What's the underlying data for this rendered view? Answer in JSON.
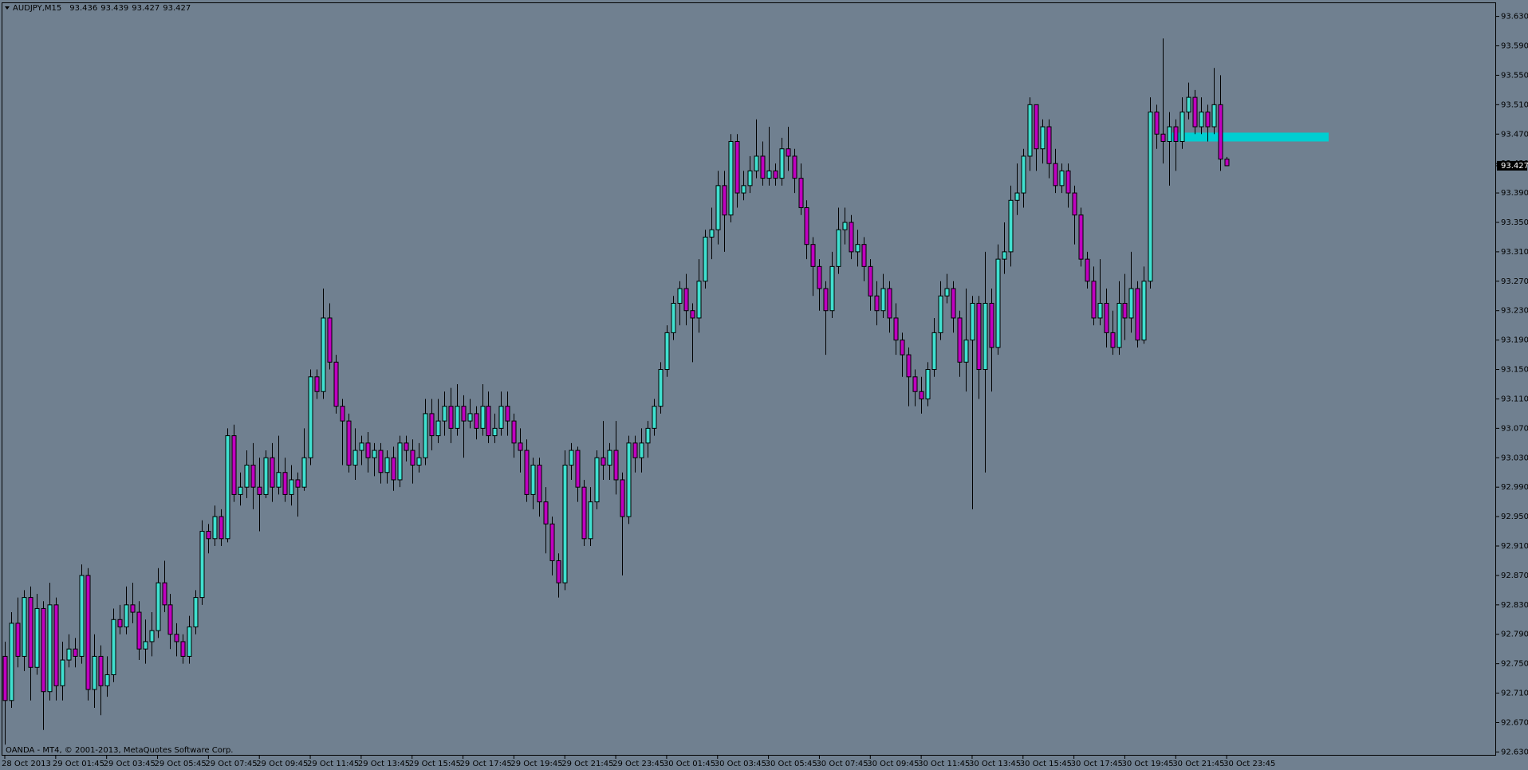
{
  "chart_data": {
    "type": "candlestick",
    "title": "AUDJPY,M15",
    "header_values": [
      93.436,
      93.439,
      93.427,
      93.427
    ],
    "footer": "OANDA - MT4, © 2001-2013, MetaQuotes Software Corp.",
    "categories": [
      "28 Oct 2013",
      null,
      null,
      null,
      null,
      null,
      null,
      null,
      "29 Oct 01:45",
      null,
      null,
      null,
      null,
      null,
      null,
      null,
      "29 Oct 03:45",
      null,
      null,
      null,
      null,
      null,
      null,
      null,
      "29 Oct 05:45",
      null,
      null,
      null,
      null,
      null,
      null,
      null,
      "29 Oct 07:45",
      null,
      null,
      null,
      null,
      null,
      null,
      null,
      "29 Oct 09:45",
      null,
      null,
      null,
      null,
      null,
      null,
      null,
      "29 Oct 11:45",
      null,
      null,
      null,
      null,
      null,
      null,
      null,
      "29 Oct 13:45",
      null,
      null,
      null,
      null,
      null,
      null,
      null,
      "29 Oct 15:45",
      null,
      null,
      null,
      null,
      null,
      null,
      null,
      "29 Oct 17:45",
      null,
      null,
      null,
      null,
      null,
      null,
      null,
      "29 Oct 19:45",
      null,
      null,
      null,
      null,
      null,
      null,
      null,
      "29 Oct 21:45",
      null,
      null,
      null,
      null,
      null,
      null,
      null,
      "29 Oct 23:45",
      null,
      null,
      null,
      null,
      null,
      null,
      null,
      "30 Oct 01:45",
      null,
      null,
      null,
      null,
      null,
      null,
      null,
      "30 Oct 03:45",
      null,
      null,
      null,
      null,
      null,
      null,
      null,
      "30 Oct 05:45",
      null,
      null,
      null,
      null,
      null,
      null,
      null,
      "30 Oct 07:45",
      null,
      null,
      null,
      null,
      null,
      null,
      null,
      "30 Oct 09:45",
      null,
      null,
      null,
      null,
      null,
      null,
      null,
      "30 Oct 11:45",
      null,
      null,
      null,
      null,
      null,
      null,
      null,
      "30 Oct 13:45",
      null,
      null,
      null,
      null,
      null,
      null,
      null,
      "30 Oct 15:45",
      null,
      null,
      null,
      null,
      null,
      null,
      null,
      "30 Oct 17:45",
      null,
      null,
      null,
      null,
      null,
      null,
      null,
      "30 Oct 19:45",
      null,
      null,
      null,
      null,
      null,
      null,
      null,
      "30 Oct 21:45",
      null,
      null,
      null,
      null,
      null,
      null,
      null,
      "30 Oct 23:45"
    ],
    "open": [
      92.76,
      92.7,
      92.805,
      92.76,
      92.84,
      92.745,
      92.825,
      92.712,
      92.83,
      92.72,
      92.755,
      92.77,
      92.76,
      92.87,
      92.715,
      92.76,
      92.72,
      92.735,
      92.81,
      92.8,
      92.83,
      92.82,
      92.77,
      92.78,
      92.795,
      92.86,
      92.83,
      92.79,
      92.78,
      92.76,
      92.8,
      92.84,
      92.93,
      92.92,
      92.95,
      92.92,
      93.06,
      92.98,
      92.99,
      93.02,
      92.99,
      92.98,
      93.03,
      92.99,
      93.01,
      92.98,
      93.0,
      92.99,
      93.03,
      93.14,
      93.12,
      93.22,
      93.16,
      93.1,
      93.08,
      93.02,
      93.04,
      93.05,
      93.03,
      93.04,
      93.01,
      93.03,
      93.0,
      93.05,
      93.04,
      93.02,
      93.03,
      93.09,
      93.06,
      93.08,
      93.1,
      93.07,
      93.1,
      93.08,
      93.09,
      93.07,
      93.1,
      93.06,
      93.07,
      93.1,
      93.08,
      93.05,
      93.04,
      92.98,
      93.02,
      92.97,
      92.94,
      92.89,
      92.86,
      93.02,
      93.04,
      92.99,
      92.92,
      92.97,
      93.03,
      93.02,
      93.04,
      93.0,
      92.95,
      93.05,
      93.03,
      93.05,
      93.07,
      93.1,
      93.15,
      93.2,
      93.24,
      93.26,
      93.23,
      93.22,
      93.27,
      93.33,
      93.34,
      93.4,
      93.36,
      93.46,
      93.39,
      93.4,
      93.42,
      93.44,
      93.41,
      93.42,
      93.41,
      93.45,
      93.44,
      93.41,
      93.37,
      93.32,
      93.29,
      93.26,
      93.23,
      93.29,
      93.34,
      93.35,
      93.31,
      93.32,
      93.29,
      93.25,
      93.23,
      93.26,
      93.22,
      93.19,
      93.17,
      93.14,
      93.12,
      93.11,
      93.15,
      93.2,
      93.25,
      93.26,
      93.22,
      93.16,
      93.19,
      93.24,
      93.15,
      93.24,
      93.18,
      93.3,
      93.31,
      93.38,
      93.39,
      93.44,
      93.51,
      93.45,
      93.48,
      93.43,
      93.4,
      93.42,
      93.39,
      93.36,
      93.3,
      93.27,
      93.22,
      93.24,
      93.2,
      93.18,
      93.24,
      93.22,
      93.26,
      93.19,
      93.27,
      93.5,
      93.47,
      93.46,
      93.48,
      93.46,
      93.5,
      93.52,
      93.48,
      93.5,
      93.48,
      93.51,
      93.436
    ],
    "high": [
      92.78,
      92.82,
      92.84,
      92.85,
      92.855,
      92.845,
      92.835,
      92.86,
      92.84,
      92.78,
      92.79,
      92.785,
      92.885,
      92.88,
      92.79,
      92.775,
      92.76,
      92.825,
      92.83,
      92.855,
      92.86,
      92.835,
      92.81,
      92.82,
      92.88,
      92.89,
      92.845,
      92.805,
      92.79,
      92.815,
      92.85,
      92.945,
      92.94,
      92.965,
      92.96,
      93.07,
      93.075,
      93.01,
      93.04,
      93.05,
      93.03,
      93.04,
      93.05,
      93.06,
      93.03,
      93.02,
      93.01,
      93.07,
      93.15,
      93.15,
      93.26,
      93.24,
      93.17,
      93.11,
      93.09,
      93.07,
      93.06,
      93.065,
      93.05,
      93.05,
      93.04,
      93.045,
      93.06,
      93.06,
      93.055,
      93.05,
      93.11,
      93.11,
      93.11,
      93.12,
      93.125,
      93.13,
      93.115,
      93.11,
      93.1,
      93.13,
      93.12,
      93.09,
      93.12,
      93.12,
      93.09,
      93.07,
      93.055,
      93.03,
      93.03,
      92.99,
      92.95,
      92.9,
      93.04,
      93.05,
      93.045,
      93.0,
      92.99,
      93.04,
      93.08,
      93.05,
      93.08,
      93.01,
      93.06,
      93.06,
      93.07,
      93.08,
      93.11,
      93.16,
      93.21,
      93.25,
      93.27,
      93.28,
      93.24,
      93.3,
      93.34,
      93.37,
      93.42,
      93.42,
      93.47,
      93.47,
      93.42,
      93.44,
      93.49,
      93.46,
      93.48,
      93.43,
      93.465,
      93.48,
      93.45,
      93.43,
      93.38,
      93.33,
      93.3,
      93.27,
      93.31,
      93.37,
      93.37,
      93.36,
      93.34,
      93.33,
      93.3,
      93.27,
      93.28,
      93.27,
      93.24,
      93.2,
      93.18,
      93.15,
      93.14,
      93.16,
      93.22,
      93.27,
      93.28,
      93.27,
      93.23,
      93.26,
      93.25,
      93.25,
      93.31,
      93.26,
      93.32,
      93.35,
      93.4,
      93.43,
      93.45,
      93.52,
      93.51,
      93.49,
      93.49,
      93.45,
      93.43,
      93.43,
      93.4,
      93.37,
      93.31,
      93.29,
      93.3,
      93.26,
      93.23,
      93.27,
      93.28,
      93.31,
      93.27,
      93.29,
      93.52,
      93.51,
      93.6,
      93.5,
      93.49,
      93.52,
      93.54,
      93.53,
      93.52,
      93.51,
      93.56,
      93.55,
      93.439
    ],
    "low": [
      92.64,
      92.69,
      92.745,
      92.74,
      92.7,
      92.735,
      92.66,
      92.7,
      92.7,
      92.7,
      92.745,
      92.745,
      92.75,
      92.7,
      92.69,
      92.68,
      92.705,
      92.725,
      92.79,
      92.79,
      92.805,
      92.755,
      92.75,
      92.76,
      92.785,
      92.82,
      92.77,
      92.76,
      92.75,
      92.75,
      92.79,
      92.83,
      92.9,
      92.91,
      92.91,
      92.915,
      92.97,
      92.965,
      92.975,
      92.96,
      92.93,
      92.975,
      92.97,
      92.98,
      92.97,
      92.965,
      92.95,
      92.985,
      93.02,
      93.11,
      93.11,
      93.15,
      93.09,
      93.02,
      93.01,
      93.0,
      93.02,
      93.01,
      93.005,
      92.995,
      92.995,
      92.985,
      92.99,
      93.025,
      92.995,
      93.01,
      93.02,
      93.04,
      93.05,
      93.06,
      93.05,
      93.06,
      93.03,
      93.07,
      93.055,
      93.06,
      93.05,
      93.05,
      93.06,
      93.06,
      93.03,
      93.01,
      92.97,
      92.96,
      92.95,
      92.9,
      92.87,
      92.84,
      92.85,
      93.0,
      92.97,
      92.91,
      92.91,
      92.96,
      93.0,
      93.0,
      92.98,
      92.87,
      92.94,
      93.01,
      93.01,
      93.03,
      93.06,
      93.09,
      93.14,
      93.19,
      93.21,
      93.21,
      93.16,
      93.2,
      93.26,
      93.3,
      93.32,
      93.31,
      93.35,
      93.37,
      93.38,
      93.39,
      93.41,
      93.4,
      93.4,
      93.4,
      93.4,
      93.42,
      93.39,
      93.36,
      93.3,
      93.25,
      93.23,
      93.17,
      93.22,
      93.28,
      93.32,
      93.3,
      93.29,
      93.27,
      93.23,
      93.21,
      93.22,
      93.2,
      93.17,
      93.14,
      93.1,
      93.1,
      93.09,
      93.1,
      93.14,
      93.19,
      93.24,
      93.2,
      93.14,
      93.12,
      92.96,
      93.11,
      93.01,
      93.12,
      93.17,
      93.28,
      93.29,
      93.36,
      93.37,
      93.42,
      93.42,
      93.43,
      93.41,
      93.39,
      93.39,
      93.37,
      93.32,
      93.29,
      93.26,
      93.21,
      93.21,
      93.18,
      93.17,
      93.17,
      93.19,
      93.2,
      93.18,
      93.185,
      93.26,
      93.45,
      93.43,
      93.4,
      93.42,
      93.45,
      93.49,
      93.47,
      93.47,
      93.46,
      93.47,
      93.42,
      93.427
    ],
    "close": [
      92.7,
      92.805,
      92.76,
      92.84,
      92.745,
      92.825,
      92.712,
      92.83,
      92.72,
      92.755,
      92.77,
      92.76,
      92.87,
      92.715,
      92.76,
      92.72,
      92.735,
      92.81,
      92.8,
      92.83,
      92.82,
      92.77,
      92.78,
      92.795,
      92.86,
      92.83,
      92.79,
      92.78,
      92.76,
      92.8,
      92.84,
      92.93,
      92.92,
      92.95,
      92.92,
      93.06,
      92.98,
      92.99,
      93.02,
      92.99,
      92.98,
      93.03,
      92.99,
      93.01,
      92.98,
      93.0,
      92.99,
      93.03,
      93.14,
      93.12,
      93.22,
      93.16,
      93.1,
      93.08,
      93.02,
      93.04,
      93.05,
      93.03,
      93.04,
      93.01,
      93.03,
      93.0,
      93.05,
      93.04,
      93.02,
      93.03,
      93.09,
      93.06,
      93.08,
      93.1,
      93.07,
      93.1,
      93.08,
      93.09,
      93.07,
      93.1,
      93.06,
      93.07,
      93.1,
      93.08,
      93.05,
      93.04,
      92.98,
      93.02,
      92.97,
      92.94,
      92.89,
      92.86,
      93.02,
      93.04,
      92.99,
      92.92,
      92.97,
      93.03,
      93.02,
      93.04,
      93.0,
      92.95,
      93.05,
      93.03,
      93.05,
      93.07,
      93.1,
      93.15,
      93.2,
      93.24,
      93.26,
      93.23,
      93.22,
      93.27,
      93.33,
      93.34,
      93.4,
      93.36,
      93.46,
      93.39,
      93.4,
      93.42,
      93.44,
      93.41,
      93.42,
      93.41,
      93.45,
      93.44,
      93.41,
      93.37,
      93.32,
      93.29,
      93.26,
      93.23,
      93.29,
      93.34,
      93.35,
      93.31,
      93.32,
      93.29,
      93.25,
      93.23,
      93.26,
      93.22,
      93.19,
      93.17,
      93.14,
      93.12,
      93.11,
      93.15,
      93.2,
      93.25,
      93.26,
      93.22,
      93.16,
      93.19,
      93.24,
      93.15,
      93.24,
      93.18,
      93.3,
      93.31,
      93.38,
      93.39,
      93.44,
      93.51,
      93.45,
      93.48,
      93.43,
      93.4,
      93.42,
      93.39,
      93.36,
      93.3,
      93.27,
      93.22,
      93.24,
      93.2,
      93.18,
      93.24,
      93.22,
      93.26,
      93.19,
      93.27,
      93.5,
      93.47,
      93.46,
      93.48,
      93.46,
      93.5,
      93.52,
      93.48,
      93.5,
      93.48,
      93.51,
      93.436,
      93.427
    ],
    "up_color": "#40e0d0",
    "down_color": "#c000c0",
    "ylim": [
      92.625,
      93.648
    ],
    "yticks": [
      {
        "value": 92.63,
        "label": "92.630"
      },
      {
        "value": 92.67,
        "label": "92.670"
      },
      {
        "value": 92.71,
        "label": "92.710"
      },
      {
        "value": 92.75,
        "label": "92.750"
      },
      {
        "value": 92.79,
        "label": "92.790"
      },
      {
        "value": 92.83,
        "label": "92.830"
      },
      {
        "value": 92.87,
        "label": "92.870"
      },
      {
        "value": 92.91,
        "label": "92.910"
      },
      {
        "value": 92.95,
        "label": "92.950"
      },
      {
        "value": 92.99,
        "label": "92.990"
      },
      {
        "value": 93.03,
        "label": "93.030"
      },
      {
        "value": 93.07,
        "label": "93.070"
      },
      {
        "value": 93.11,
        "label": "93.110"
      },
      {
        "value": 93.15,
        "label": "93.150"
      },
      {
        "value": 93.19,
        "label": "93.190"
      },
      {
        "value": 93.23,
        "label": "93.230"
      },
      {
        "value": 93.27,
        "label": "93.270"
      },
      {
        "value": 93.31,
        "label": "93.310"
      },
      {
        "value": 93.35,
        "label": "93.350"
      },
      {
        "value": 93.39,
        "label": "93.390"
      },
      {
        "value": 93.43,
        "label": "93.430"
      },
      {
        "value": 93.47,
        "label": "93.470"
      },
      {
        "value": 93.51,
        "label": "93.510"
      },
      {
        "value": 93.55,
        "label": "93.550"
      },
      {
        "value": 93.59,
        "label": "93.590"
      },
      {
        "value": 93.63,
        "label": "93.630"
      }
    ],
    "bid": 93.427,
    "zone": {
      "top": 93.472,
      "bottom": 93.46,
      "color": "#00ced1"
    }
  }
}
